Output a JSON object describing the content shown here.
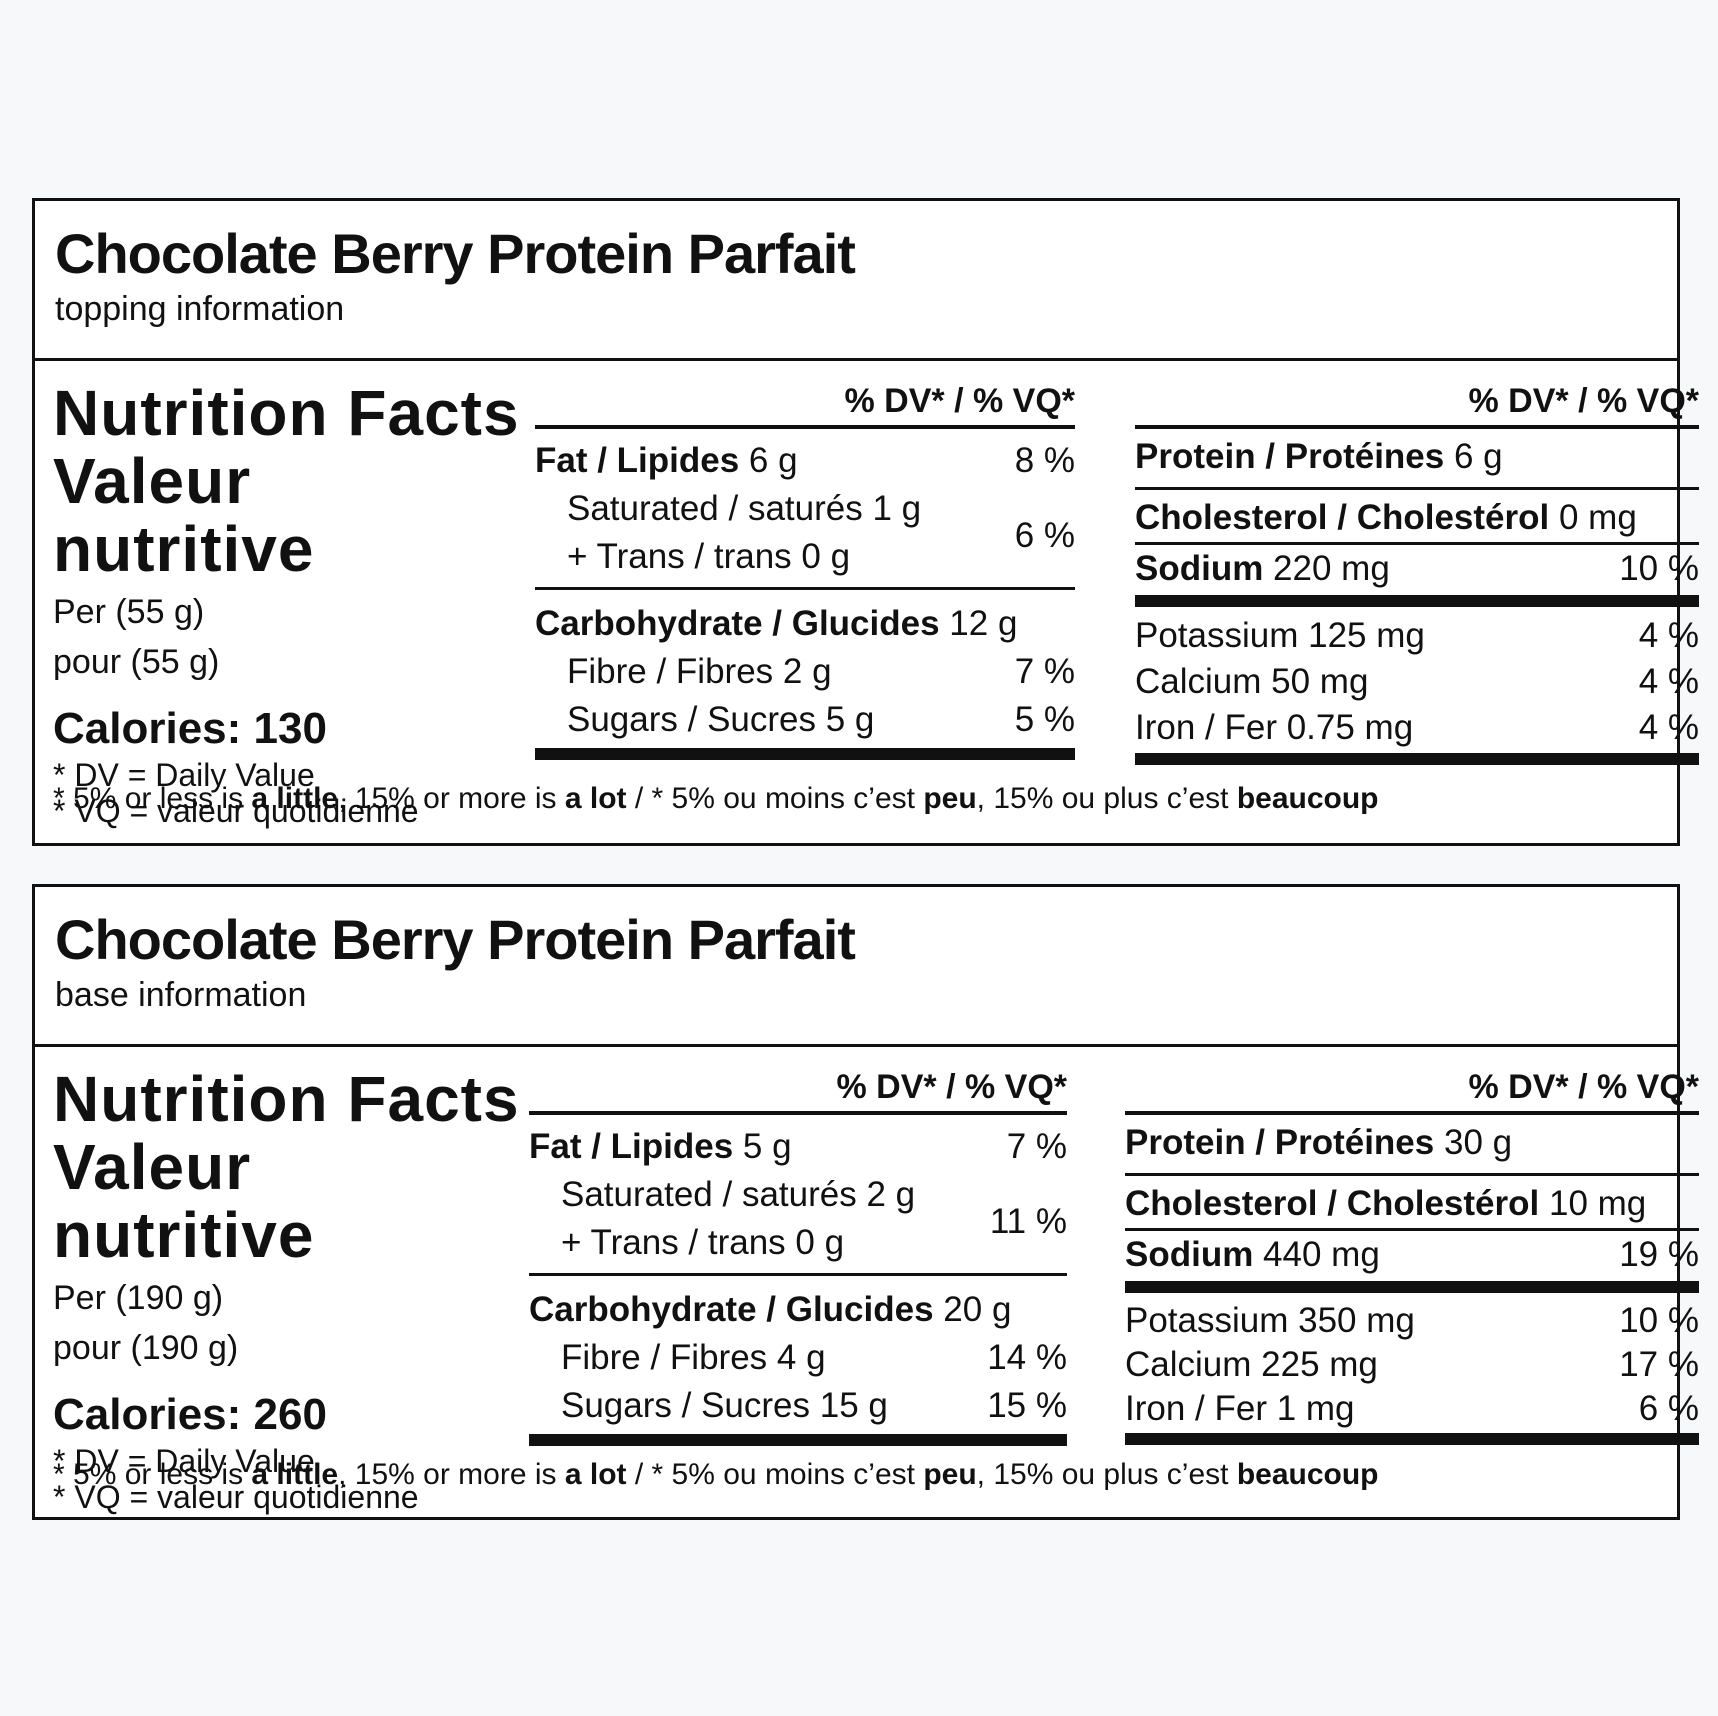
{
  "labels": [
    {
      "title": "Chocolate Berry Protein Parfait",
      "subtitle": "topping information",
      "nf_en": "Nutrition Facts",
      "nf_fr": "Valeur nutritive",
      "per_en": "Per (55 g)",
      "per_fr": "pour (55 g)",
      "calories": "Calories: 130",
      "dv_note": "* DV = Daily Value",
      "vq_note": "* VQ = valeur quotidienne",
      "dv_header": "% DV* / % VQ*",
      "fat": {
        "label": "Fat / Lipides",
        "amount": " 6 g",
        "dv": "8 %"
      },
      "saturated": "Saturated / saturés 1 g",
      "trans": "+ Trans / trans 0 g",
      "sat_trans_dv": "6 %",
      "carb": {
        "label": "Carbohydrate / Glucides",
        "amount": " 12 g"
      },
      "fibre": {
        "label": "Fibre / Fibres 2 g",
        "dv": "7 %"
      },
      "sugars": {
        "label": "Sugars / Sucres 5 g",
        "dv": "5 %"
      },
      "protein": {
        "label": "Protein / Protéines",
        "amount": " 6 g"
      },
      "cholesterol": {
        "label": "Cholesterol / Cholestérol",
        "amount": " 0 mg"
      },
      "sodium": {
        "label": "Sodium",
        "amount": " 220 mg",
        "dv": "10 %"
      },
      "potassium": {
        "label": "Potassium 125 mg",
        "dv": "4 %"
      },
      "calcium": {
        "label": "Calcium 50 mg",
        "dv": "4 %"
      },
      "iron": {
        "label": "Iron / Fer 0.75 mg",
        "dv": "4 %"
      },
      "footnote": {
        "a": "* 5% or less is ",
        "b": "a little",
        "c": ", 15% or more is ",
        "d": "a lot",
        "e": " / * 5% ou moins c’est ",
        "f": "peu",
        "g": ", 15% ou plus c’est ",
        "h": "beaucoup"
      }
    },
    {
      "title": "Chocolate Berry Protein Parfait",
      "subtitle": "base information",
      "nf_en": "Nutrition Facts",
      "nf_fr": "Valeur nutritive",
      "per_en": "Per (190 g)",
      "per_fr": "pour (190 g)",
      "calories": "Calories: 260",
      "dv_note": "* DV = Daily Value",
      "vq_note": "* VQ = valeur quotidienne",
      "dv_header": "% DV* / % VQ*",
      "fat": {
        "label": "Fat / Lipides",
        "amount": " 5 g",
        "dv": "7 %"
      },
      "saturated": "Saturated / saturés 2 g",
      "trans": "+ Trans / trans 0 g",
      "sat_trans_dv": "11 %",
      "carb": {
        "label": "Carbohydrate / Glucides",
        "amount": " 20 g"
      },
      "fibre": {
        "label": "Fibre / Fibres 4 g",
        "dv": "14 %"
      },
      "sugars": {
        "label": "Sugars / Sucres 15 g",
        "dv": "15 %"
      },
      "protein": {
        "label": "Protein / Protéines",
        "amount": " 30 g"
      },
      "cholesterol": {
        "label": "Cholesterol / Cholestérol",
        "amount": " 10 mg"
      },
      "sodium": {
        "label": "Sodium",
        "amount": " 440 mg",
        "dv": "19 %"
      },
      "potassium": {
        "label": "Potassium 350 mg",
        "dv": "10 %"
      },
      "calcium": {
        "label": "Calcium 225 mg",
        "dv": "17 %"
      },
      "iron": {
        "label": "Iron / Fer 1 mg",
        "dv": "6 %"
      },
      "footnote": {
        "a": "* 5% or less is ",
        "b": "a little",
        "c": ", 15% or more is ",
        "d": "a lot",
        "e": " / * 5% ou moins c’est ",
        "f": "peu",
        "g": ", 15% ou plus c’est ",
        "h": "beaucoup"
      }
    }
  ]
}
